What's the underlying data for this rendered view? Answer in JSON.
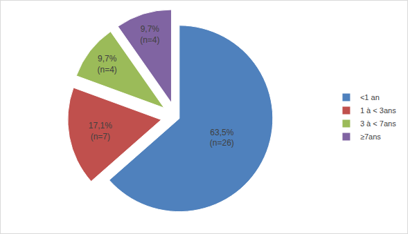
{
  "chart_data": {
    "type": "pie",
    "categories": [
      "<1 an",
      "1 à < 3ans",
      "3 à < 7ans",
      "≥7ans"
    ],
    "values": [
      63.5,
      17.1,
      9.7,
      9.7
    ],
    "value_labels": [
      "63,5%",
      "17,1%",
      "9,7%",
      "9,7%"
    ],
    "count_labels": [
      "(n=26)",
      "(n=7)",
      "(n=4)",
      "(n=4)"
    ],
    "colors": [
      "#4f81bd",
      "#c0504d",
      "#9bbb59",
      "#8064a2"
    ],
    "data_labels": true,
    "legend": "right"
  }
}
